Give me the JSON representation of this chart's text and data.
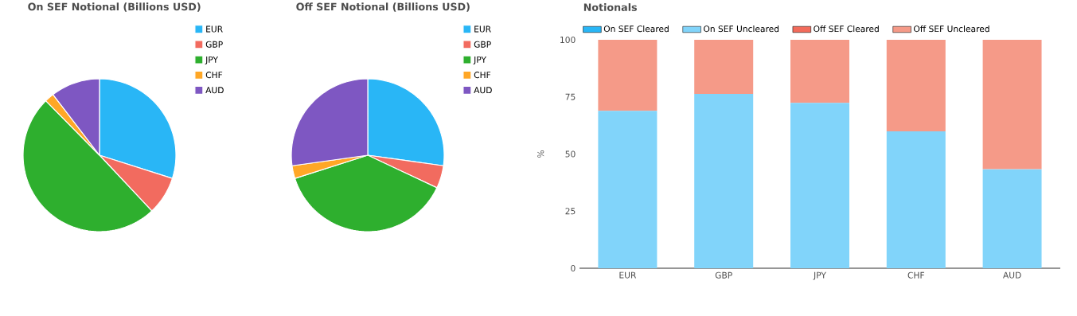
{
  "chart_data": [
    {
      "type": "pie",
      "title": "On SEF Notional (Billions USD)",
      "categories": [
        "EUR",
        "GBP",
        "JPY",
        "CHF",
        "AUD"
      ],
      "values": [
        29.9,
        8.1,
        49.6,
        2.0,
        10.4
      ],
      "colors": [
        "#29b6f6",
        "#f26b5f",
        "#2eaf2e",
        "#ffa726",
        "#7e57c2"
      ],
      "legend": "top right"
    },
    {
      "type": "pie",
      "title": "Off SEF Notional (Billions USD)",
      "categories": [
        "EUR",
        "GBP",
        "JPY",
        "CHF",
        "AUD"
      ],
      "values": [
        27.2,
        4.8,
        38.1,
        2.7,
        27.2
      ],
      "colors": [
        "#29b6f6",
        "#f26b5f",
        "#2eaf2e",
        "#ffa726",
        "#7e57c2"
      ],
      "legend": "top right"
    },
    {
      "type": "bar",
      "title": "Notionals",
      "ylabel": "%",
      "categories": [
        "EUR",
        "GBP",
        "JPY",
        "CHF",
        "AUD"
      ],
      "stacked": true,
      "ylim": [
        0,
        100
      ],
      "yticks": [
        0,
        25,
        50,
        75,
        100
      ],
      "legend": "top",
      "series": [
        {
          "name": "On SEF Cleared",
          "color": "#29b6f6",
          "values": [
            0,
            0,
            0,
            0,
            0
          ]
        },
        {
          "name": "On SEF Uncleared",
          "color": "#81d4fa",
          "values": [
            68.9,
            76.3,
            72.4,
            59.9,
            43.3
          ]
        },
        {
          "name": "Off SEF Cleared",
          "color": "#f26b5b",
          "values": [
            0,
            0,
            0,
            0,
            0
          ]
        },
        {
          "name": "Off SEF Uncleared",
          "color": "#f59a88",
          "values": [
            31.1,
            23.7,
            27.6,
            40.1,
            56.7
          ]
        }
      ]
    }
  ]
}
